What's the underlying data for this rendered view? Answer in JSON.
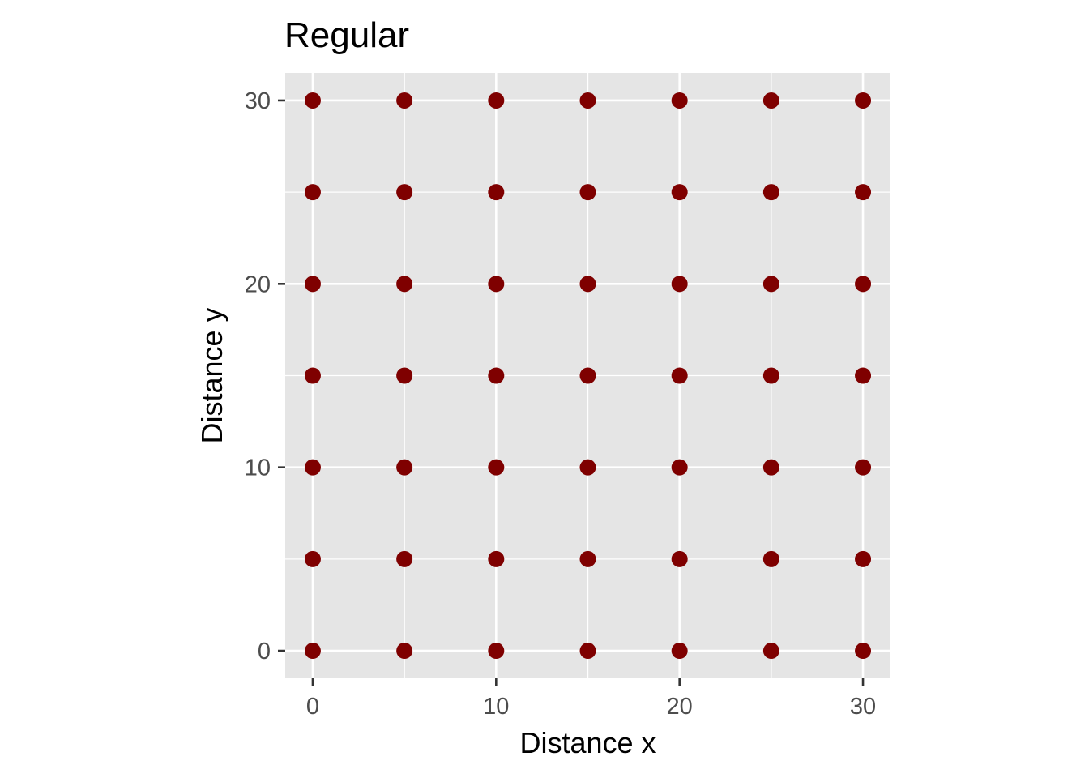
{
  "chart_data": {
    "type": "scatter",
    "title": "Regular",
    "xlabel": "Distance x",
    "ylabel": "Distance y",
    "xlim": [
      -1.5,
      31.5
    ],
    "ylim": [
      -1.5,
      31.5
    ],
    "x_ticks": [
      0,
      10,
      20,
      30
    ],
    "y_ticks": [
      0,
      10,
      20,
      30
    ],
    "x_minor": [
      5,
      15,
      25
    ],
    "y_minor": [
      5,
      15,
      25
    ],
    "grid": true,
    "legend": "none",
    "colors": {
      "panel": "#e5e5e5",
      "grid": "#ffffff",
      "point": "#7f0000",
      "tick_label": "#4d4d4d",
      "tick_mark": "#333333"
    },
    "points": [
      {
        "x": 0,
        "y": 0
      },
      {
        "x": 5,
        "y": 0
      },
      {
        "x": 10,
        "y": 0
      },
      {
        "x": 15,
        "y": 0
      },
      {
        "x": 20,
        "y": 0
      },
      {
        "x": 25,
        "y": 0
      },
      {
        "x": 30,
        "y": 0
      },
      {
        "x": 0,
        "y": 5
      },
      {
        "x": 5,
        "y": 5
      },
      {
        "x": 10,
        "y": 5
      },
      {
        "x": 15,
        "y": 5
      },
      {
        "x": 20,
        "y": 5
      },
      {
        "x": 25,
        "y": 5
      },
      {
        "x": 30,
        "y": 5
      },
      {
        "x": 0,
        "y": 10
      },
      {
        "x": 5,
        "y": 10
      },
      {
        "x": 10,
        "y": 10
      },
      {
        "x": 15,
        "y": 10
      },
      {
        "x": 20,
        "y": 10
      },
      {
        "x": 25,
        "y": 10
      },
      {
        "x": 30,
        "y": 10
      },
      {
        "x": 0,
        "y": 15
      },
      {
        "x": 5,
        "y": 15
      },
      {
        "x": 10,
        "y": 15
      },
      {
        "x": 15,
        "y": 15
      },
      {
        "x": 20,
        "y": 15
      },
      {
        "x": 25,
        "y": 15
      },
      {
        "x": 30,
        "y": 15
      },
      {
        "x": 0,
        "y": 20
      },
      {
        "x": 5,
        "y": 20
      },
      {
        "x": 10,
        "y": 20
      },
      {
        "x": 15,
        "y": 20
      },
      {
        "x": 20,
        "y": 20
      },
      {
        "x": 25,
        "y": 20
      },
      {
        "x": 30,
        "y": 20
      },
      {
        "x": 0,
        "y": 25
      },
      {
        "x": 5,
        "y": 25
      },
      {
        "x": 10,
        "y": 25
      },
      {
        "x": 15,
        "y": 25
      },
      {
        "x": 20,
        "y": 25
      },
      {
        "x": 25,
        "y": 25
      },
      {
        "x": 30,
        "y": 25
      },
      {
        "x": 0,
        "y": 30
      },
      {
        "x": 5,
        "y": 30
      },
      {
        "x": 10,
        "y": 30
      },
      {
        "x": 15,
        "y": 30
      },
      {
        "x": 20,
        "y": 30
      },
      {
        "x": 25,
        "y": 30
      },
      {
        "x": 30,
        "y": 30
      }
    ]
  }
}
